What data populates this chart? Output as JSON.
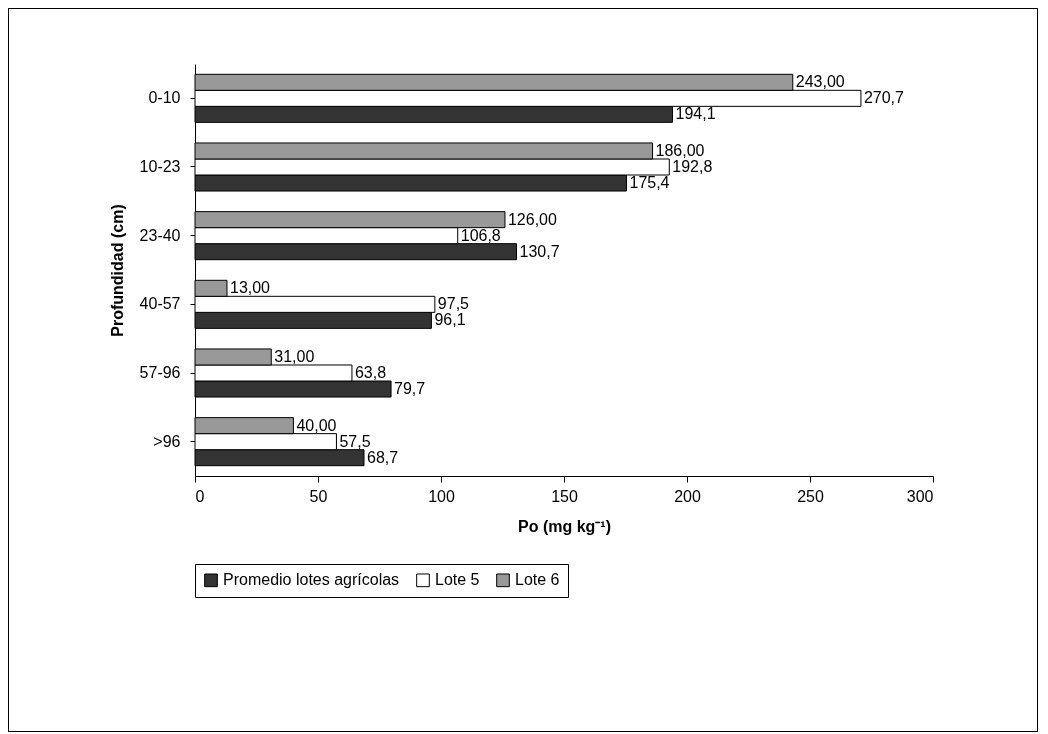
{
  "chart_data": {
    "type": "bar",
    "orientation": "horizontal",
    "xlabel": "Po (mg kg⁻¹)",
    "ylabel": "Profundidad (cm)",
    "categories": [
      "0-10",
      "10-23",
      "23-40",
      "40-57",
      "57-96",
      ">96"
    ],
    "series": [
      {
        "name": "Promedio lotes agrícolas",
        "color": "#333333",
        "values": [
          194.1,
          175.4,
          130.7,
          96.1,
          79.7,
          68.7
        ],
        "value_labels": [
          "194,1",
          "175,4",
          "130,7",
          "96,1",
          "79,7",
          "68,7"
        ]
      },
      {
        "name": "Lote 5",
        "color": "#ffffff",
        "values": [
          270.7,
          192.8,
          106.8,
          97.5,
          63.8,
          57.5
        ],
        "value_labels": [
          "270,7",
          "192,8",
          "106,8",
          "97,5",
          "63,8",
          "57,5"
        ]
      },
      {
        "name": "Lote 6",
        "color": "#999999",
        "values": [
          243,
          186,
          126,
          13,
          31,
          40
        ],
        "value_labels": [
          "243,00",
          "186,00",
          "126,00",
          "13,00",
          "31,00",
          "40,00"
        ]
      }
    ],
    "xlim": [
      0,
      300
    ],
    "xticks": [
      0,
      50,
      100,
      150,
      200,
      250,
      300
    ],
    "grid": false,
    "legend": "bottom"
  }
}
